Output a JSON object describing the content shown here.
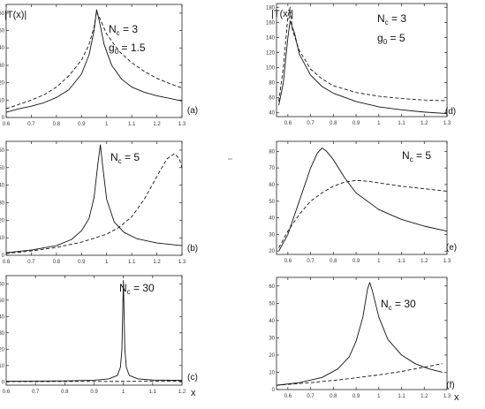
{
  "chart_data": [
    {
      "type": "line",
      "panel_label": "(a)",
      "ylabel": "|T(x)|",
      "xticks": [
        "0.6",
        "0.7",
        "0.8",
        "0.9",
        "1",
        "1.1",
        "1.2",
        "1.3"
      ],
      "yticks": [
        "0",
        "10",
        "20",
        "30",
        "40",
        "50",
        "60"
      ],
      "xlim": [
        0.6,
        1.3
      ],
      "ylim": [
        0,
        65
      ],
      "annotations": [
        [
          "N",
          "c",
          " = 3"
        ],
        [
          "g",
          "0",
          " = 1.5"
        ]
      ],
      "xunit": "",
      "series": [
        {
          "style": "solid",
          "x": [
            0.6,
            0.65,
            0.7,
            0.75,
            0.8,
            0.85,
            0.9,
            0.93,
            0.95,
            0.96,
            0.97,
            0.99,
            1.02,
            1.06,
            1.1,
            1.15,
            1.2,
            1.25,
            1.3
          ],
          "y": [
            3,
            5,
            6.5,
            8.5,
            11.5,
            16,
            25,
            36,
            50,
            62,
            56,
            42,
            30,
            22,
            17.5,
            14.5,
            12.5,
            11,
            9.5
          ]
        },
        {
          "style": "dashed",
          "x": [
            0.6,
            0.65,
            0.7,
            0.75,
            0.8,
            0.85,
            0.9,
            0.93,
            0.95,
            0.96,
            0.97,
            1,
            1.05,
            1.1,
            1.15,
            1.2,
            1.25,
            1.3
          ],
          "y": [
            5,
            7.5,
            10,
            13,
            17.5,
            24,
            33,
            42,
            52,
            61,
            58,
            48,
            38,
            31.5,
            26.5,
            22.5,
            19.5,
            17
          ]
        }
      ]
    },
    {
      "type": "line",
      "panel_label": "(b)",
      "ylabel": "",
      "xticks": [
        "0.6",
        "0.7",
        "0.8",
        "0.9",
        "1",
        "1.1",
        "1.2",
        "1.3"
      ],
      "yticks": [
        "0",
        "10",
        "20",
        "30",
        "40",
        "50",
        "60"
      ],
      "xlim": [
        0.6,
        1.3
      ],
      "ylim": [
        0,
        65
      ],
      "annotations": [
        [
          "N",
          "c",
          " = 5"
        ]
      ],
      "xunit": "",
      "series": [
        {
          "style": "solid",
          "x": [
            0.6,
            0.7,
            0.8,
            0.86,
            0.9,
            0.93,
            0.95,
            0.965,
            0.975,
            0.985,
            1,
            1.03,
            1.07,
            1.12,
            1.2,
            1.3
          ],
          "y": [
            1.5,
            3,
            5.5,
            9,
            14,
            21,
            33,
            52,
            63,
            50,
            32,
            19,
            13,
            9.5,
            7,
            5.5
          ]
        },
        {
          "style": "dashed",
          "x": [
            0.6,
            0.7,
            0.8,
            0.9,
            1,
            1.05,
            1.1,
            1.15,
            1.2,
            1.24,
            1.27,
            1.29,
            1.3
          ],
          "y": [
            1,
            2.5,
            4.5,
            7.5,
            12,
            16,
            22,
            32,
            45,
            55,
            58,
            55,
            50
          ]
        }
      ]
    },
    {
      "type": "line",
      "panel_label": "(c)",
      "ylabel": "",
      "xticks": [
        "0.6",
        "0.7",
        "0.8",
        "0.9",
        "1",
        "1.1",
        "1.2"
      ],
      "yticks": [
        "0",
        "10",
        "20",
        "30",
        "40",
        "50",
        "60"
      ],
      "xlim": [
        0.6,
        1.2
      ],
      "ylim": [
        -2,
        65
      ],
      "annotations": [
        [
          "N",
          "c",
          " = 30"
        ]
      ],
      "xunit": "x",
      "series": [
        {
          "style": "solid",
          "x": [
            0.6,
            0.8,
            0.9,
            0.95,
            0.98,
            0.99,
            0.995,
            1,
            1.005,
            1.01,
            1.02,
            1.05,
            1.1,
            1.2
          ],
          "y": [
            0.4,
            0.6,
            1,
            1.8,
            4,
            9,
            20,
            62,
            20,
            9,
            4,
            1.8,
            1.1,
            0.9
          ]
        },
        {
          "style": "dashed",
          "x": [
            0.6,
            0.8,
            1,
            1.2
          ],
          "y": [
            0.2,
            0.25,
            0.3,
            0.35
          ]
        }
      ]
    },
    {
      "type": "line",
      "panel_label": "(d)",
      "ylabel": "|T(x)|",
      "xticks": [
        "0.6",
        "0.7",
        "0.8",
        "0.9",
        "1",
        "1.1",
        "1.2",
        "1.3"
      ],
      "yticks": [
        "40",
        "60",
        "80",
        "100",
        "120",
        "140",
        "160",
        "180"
      ],
      "xlim": [
        0.55,
        1.3
      ],
      "ylim": [
        35,
        185
      ],
      "annotations": [
        [
          "N",
          "c",
          " = 3"
        ],
        [
          "g",
          "0",
          " = 5"
        ]
      ],
      "xunit": "",
      "series": [
        {
          "style": "solid",
          "x": [
            0.56,
            0.58,
            0.6,
            0.61,
            0.63,
            0.65,
            0.7,
            0.75,
            0.8,
            0.9,
            1,
            1.1,
            1.2,
            1.3
          ],
          "y": [
            50,
            80,
            140,
            162,
            145,
            118,
            90,
            75,
            66,
            55,
            48,
            44,
            41,
            39
          ]
        },
        {
          "style": "dashed",
          "x": [
            0.56,
            0.58,
            0.6,
            0.61,
            0.62,
            0.65,
            0.7,
            0.75,
            0.8,
            0.9,
            1,
            1.1,
            1.2,
            1.3
          ],
          "y": [
            55,
            100,
            168,
            180,
            150,
            123,
            98,
            85,
            76,
            67,
            62,
            59,
            57,
            56
          ]
        }
      ]
    },
    {
      "type": "line",
      "panel_label": "(e)",
      "ylabel": "",
      "xticks": [
        "0.6",
        "0.7",
        "0.8",
        "0.9",
        "1",
        "1.1",
        "1.2",
        "1.3"
      ],
      "yticks": [
        "20",
        "30",
        "40",
        "50",
        "60",
        "70",
        "80"
      ],
      "xlim": [
        0.55,
        1.3
      ],
      "ylim": [
        18,
        86
      ],
      "annotations": [
        [
          "N",
          "c",
          " = 5"
        ]
      ],
      "xunit": "",
      "series": [
        {
          "style": "solid",
          "x": [
            0.56,
            0.6,
            0.65,
            0.7,
            0.73,
            0.75,
            0.77,
            0.8,
            0.85,
            0.9,
            1,
            1.1,
            1.2,
            1.3
          ],
          "y": [
            20,
            30,
            50,
            70,
            79,
            82,
            80,
            75,
            64,
            55,
            45,
            39,
            35,
            32
          ]
        },
        {
          "style": "dashed",
          "x": [
            0.56,
            0.6,
            0.65,
            0.7,
            0.75,
            0.8,
            0.85,
            0.9,
            0.95,
            1,
            1.1,
            1.2,
            1.3
          ],
          "y": [
            22,
            32,
            42,
            50,
            55,
            59,
            61.5,
            62.5,
            62,
            61,
            59,
            57.5,
            56
          ]
        }
      ]
    },
    {
      "type": "line",
      "panel_label": "(f)",
      "ylabel": "",
      "xticks": [
        "0.6",
        "0.7",
        "0.8",
        "0.9",
        "1",
        "1.1",
        "1.2",
        "1.3"
      ],
      "yticks": [
        "0",
        "10",
        "20",
        "30",
        "40",
        "50",
        "60"
      ],
      "xlim": [
        0.55,
        1.3
      ],
      "ylim": [
        0,
        65
      ],
      "annotations": [
        [
          "N",
          "c",
          " = 30"
        ]
      ],
      "xunit": "x",
      "series": [
        {
          "style": "solid",
          "x": [
            0.55,
            0.65,
            0.75,
            0.82,
            0.87,
            0.9,
            0.93,
            0.95,
            0.96,
            0.97,
            1,
            1.04,
            1.1,
            1.16,
            1.22,
            1.28
          ],
          "y": [
            2.5,
            4,
            7,
            12,
            19,
            28,
            42,
            58,
            62,
            58,
            42,
            29,
            20,
            15,
            12,
            10
          ]
        },
        {
          "style": "dashed",
          "x": [
            0.55,
            0.7,
            0.85,
            1,
            1.1,
            1.2,
            1.28
          ],
          "y": [
            2.5,
            4,
            6,
            8.5,
            10.5,
            13,
            15
          ]
        }
      ]
    }
  ]
}
